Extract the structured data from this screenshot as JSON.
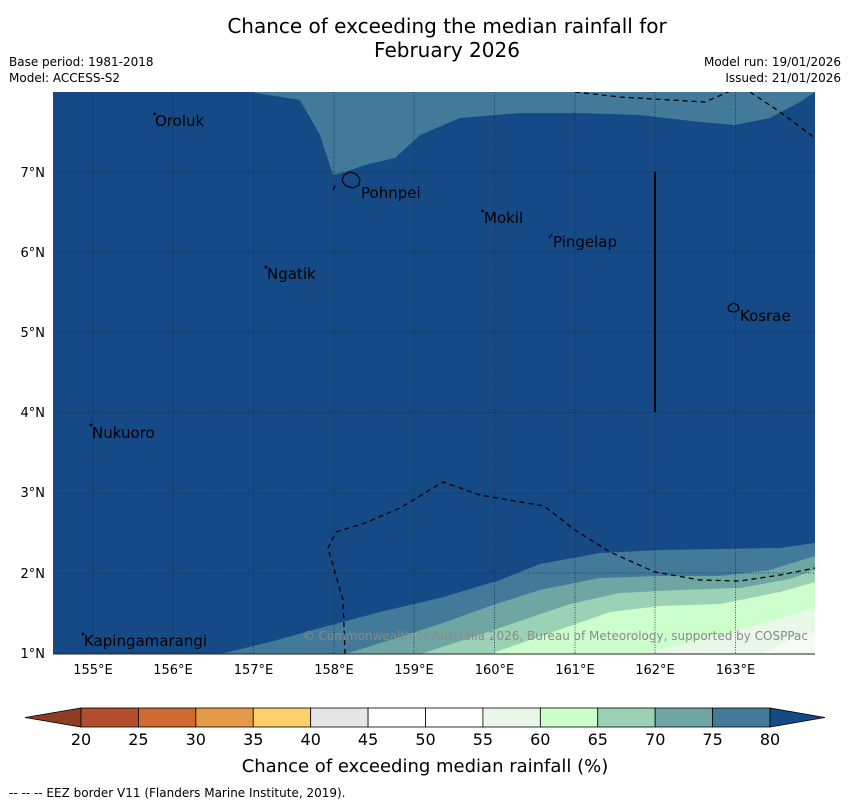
{
  "title": {
    "line1": "Chance of exceeding the median rainfall for",
    "line2": "February 2026"
  },
  "meta": {
    "base_period": "Base period: 1981-2018",
    "model": "Model: ACCESS-S2",
    "model_run": "Model run: 19/01/2026",
    "issued": "Issued: 21/01/2026"
  },
  "map": {
    "places": [
      {
        "name": "Oroluk",
        "lon": 155.75,
        "lat": 7.65
      },
      {
        "name": "Pohnpei",
        "lon": 158.3,
        "lat": 6.88
      },
      {
        "name": "Mokil",
        "lon": 159.8,
        "lat": 6.42
      },
      {
        "name": "Pingelap",
        "lon": 160.75,
        "lat": 6.15
      },
      {
        "name": "Ngatik",
        "lon": 157.35,
        "lat": 5.78
      },
      {
        "name": "Kosrae",
        "lon": 162.98,
        "lat": 5.32
      },
      {
        "name": "Nukuoro",
        "lon": 154.95,
        "lat": 3.82
      },
      {
        "name": "Kapingamarangi",
        "lon": 154.8,
        "lat": 1.1
      }
    ],
    "lon_ticks": [
      "155°E",
      "156°E",
      "157°E",
      "158°E",
      "159°E",
      "160°E",
      "161°E",
      "162°E",
      "163°E"
    ],
    "lat_ticks": [
      "1°N",
      "2°N",
      "3°N",
      "4°N",
      "5°N",
      "7°N",
      "6°N"
    ],
    "copyright": "© Commonwealth of Australia 2026, Bureau of Meteorology, supported by COSPPac"
  },
  "colorbar": {
    "ticks": [
      "20",
      "25",
      "30",
      "35",
      "40",
      "45",
      "50",
      "55",
      "60",
      "65",
      "70",
      "75",
      "80"
    ],
    "colors": [
      "#b24e2b",
      "#cf6b32",
      "#e59a4a",
      "#fdd06c",
      "#e6e6e6",
      "#ffffff",
      "#ffffff",
      "#e9f7e9",
      "#ccffcc",
      "#9bd1b4",
      "#6fa6a4",
      "#437a9a"
    ],
    "under_color": "#8e3c22",
    "over_color": "#154a86",
    "label": "Chance of exceeding median rainfall (%)"
  },
  "footnote": "--  --  -- EEZ border V11 (Flanders Marine Institute, 2019)."
}
